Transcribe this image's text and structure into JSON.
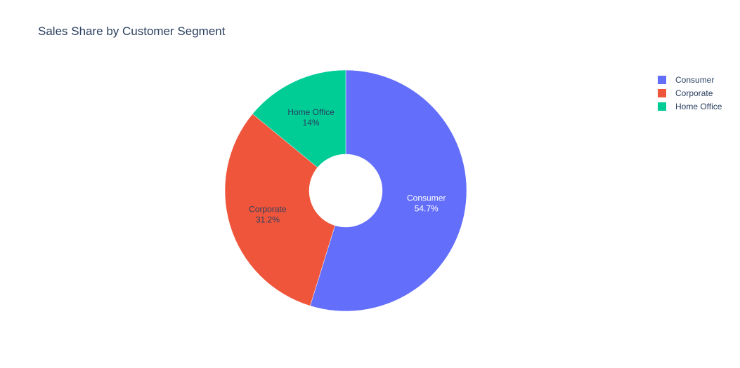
{
  "chart_data": {
    "type": "pie",
    "title": "Sales Share by Customer Segment",
    "hole": true,
    "legend_position": "top-right",
    "series": [
      {
        "name": "Consumer",
        "value": 54.7,
        "label": "54.7%",
        "color": "#636efa",
        "label_color": "#ffffff"
      },
      {
        "name": "Corporate",
        "value": 31.2,
        "label": "31.2%",
        "color": "#ef553b",
        "label_color": "#2a3f5f"
      },
      {
        "name": "Home Office",
        "value": 14.0,
        "label": "14%",
        "color": "#00cc96",
        "label_color": "#2a3f5f"
      }
    ]
  }
}
